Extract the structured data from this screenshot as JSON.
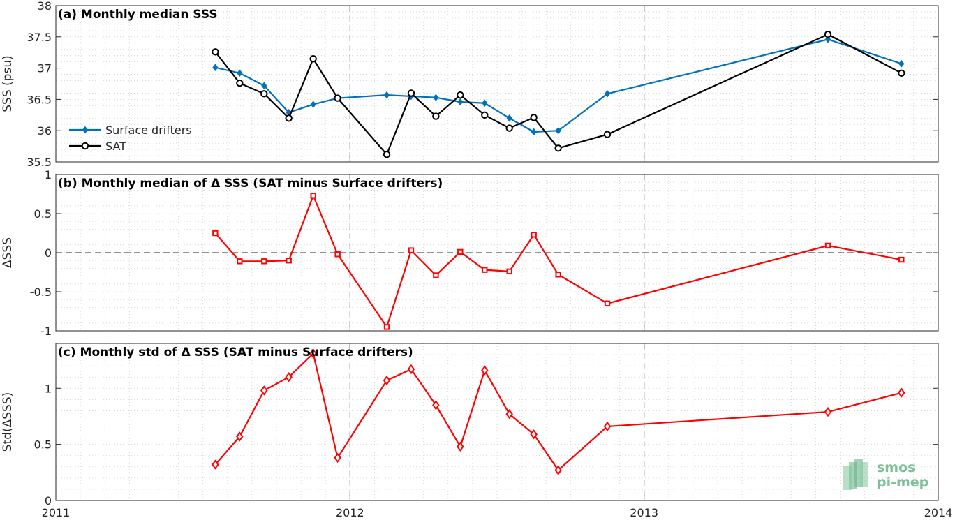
{
  "chart_data": [
    {
      "type": "line",
      "title": "(a) Monthly median SSS",
      "ylabel": "SSS (psu)",
      "xlim": [
        2011,
        2014
      ],
      "ylim": [
        35.5,
        38
      ],
      "yticks": [
        35.5,
        36,
        36.5,
        37,
        37.5,
        38
      ],
      "ytick_labels": [
        "35.5",
        "36",
        "36.5",
        "37",
        "37.5",
        "38"
      ],
      "grid": true,
      "legend": "left",
      "series": [
        {
          "name": "Surface drifters",
          "color": "#0072bd",
          "marker": "diamond-filled",
          "x": [
            2011.542,
            2011.625,
            2011.708,
            2011.792,
            2011.875,
            2011.958,
            2012.125,
            2012.208,
            2012.292,
            2012.375,
            2012.458,
            2012.542,
            2012.625,
            2012.708,
            2012.875,
            2013.625,
            2013.875
          ],
          "y": [
            37.01,
            36.92,
            36.72,
            36.29,
            36.42,
            36.52,
            36.57,
            36.55,
            36.53,
            36.46,
            36.44,
            36.2,
            35.98,
            36.0,
            36.59,
            37.46,
            37.07
          ]
        },
        {
          "name": "SAT",
          "color": "#000000",
          "marker": "circle-open",
          "x": [
            2011.542,
            2011.625,
            2011.708,
            2011.792,
            2011.875,
            2011.958,
            2012.125,
            2012.208,
            2012.292,
            2012.375,
            2012.458,
            2012.542,
            2012.625,
            2012.708,
            2012.875,
            2013.625,
            2013.875
          ],
          "y": [
            37.26,
            36.76,
            36.59,
            36.2,
            37.15,
            36.52,
            35.62,
            36.6,
            36.23,
            36.57,
            36.25,
            36.04,
            36.21,
            35.72,
            35.94,
            37.54,
            36.92
          ]
        }
      ]
    },
    {
      "type": "line",
      "title": "(b) Monthly median of Δ SSS (SAT minus Surface drifters)",
      "ylabel": "ΔSSS",
      "xlim": [
        2011,
        2014
      ],
      "ylim": [
        -1,
        1
      ],
      "yticks": [
        -1,
        -0.5,
        0,
        0.5,
        1
      ],
      "ytick_labels": [
        "-1",
        "-0.5",
        "0",
        "0.5",
        "1"
      ],
      "grid": true,
      "zero_line": true,
      "series": [
        {
          "color": "#ff0000",
          "marker": "square-open",
          "x": [
            2011.542,
            2011.625,
            2011.708,
            2011.792,
            2011.875,
            2011.958,
            2012.125,
            2012.208,
            2012.292,
            2012.375,
            2012.458,
            2012.542,
            2012.625,
            2012.708,
            2012.875,
            2013.625,
            2013.875
          ],
          "y": [
            0.25,
            -0.11,
            -0.11,
            -0.1,
            0.73,
            -0.02,
            -0.95,
            0.03,
            -0.29,
            0.01,
            -0.22,
            -0.24,
            0.23,
            -0.28,
            -0.65,
            0.09,
            -0.09
          ]
        }
      ]
    },
    {
      "type": "line",
      "title": "(c) Monthly std of Δ SSS (SAT minus Surface drifters)",
      "ylabel": "Std(ΔSSS)",
      "xlim": [
        2011,
        2014
      ],
      "ylim": [
        0,
        1.4
      ],
      "yticks": [
        0,
        0.5,
        1
      ],
      "ytick_labels": [
        "0",
        "0.5",
        "1"
      ],
      "xticks": [
        2011,
        2012,
        2013,
        2014
      ],
      "xtick_labels": [
        "2011",
        "2012",
        "2013",
        "2014"
      ],
      "grid": true,
      "series": [
        {
          "color": "#ff0000",
          "marker": "diamond-open",
          "x": [
            2011.542,
            2011.625,
            2011.708,
            2011.792,
            2011.875,
            2011.958,
            2012.125,
            2012.208,
            2012.292,
            2012.375,
            2012.458,
            2012.542,
            2012.625,
            2012.708,
            2012.875,
            2013.625,
            2013.875
          ],
          "y": [
            0.32,
            0.57,
            0.98,
            1.1,
            1.31,
            0.38,
            1.07,
            1.17,
            0.85,
            0.48,
            1.16,
            0.77,
            0.59,
            0.27,
            0.66,
            0.79,
            0.96
          ]
        }
      ]
    }
  ],
  "logo": {
    "line1": "smos",
    "line2": "pi-mep",
    "color": "#7fbf9a"
  }
}
